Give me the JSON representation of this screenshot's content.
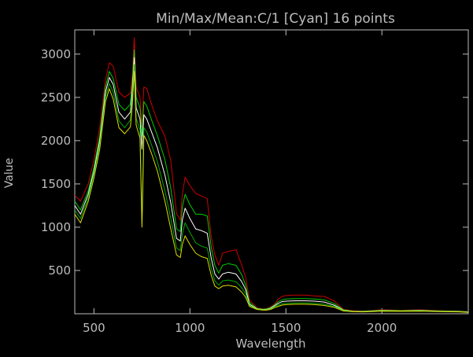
{
  "chart_data": {
    "type": "line",
    "title": "Min/Max/Mean:C/1 [Cyan] 16 points",
    "xlabel": "Wavelength",
    "ylabel": "Value",
    "xlim": [
      400,
      2450
    ],
    "ylim": [
      0,
      3280
    ],
    "x_ticks": [
      500,
      1000,
      1500,
      2000
    ],
    "y_ticks": [
      500,
      1000,
      1500,
      2000,
      2500,
      3000
    ],
    "grid": false,
    "colors": {
      "background": "#000000",
      "axis": "#bdbdbd",
      "max": "#cc0000",
      "max_mean": "#00cc00",
      "mean": "#ffffff",
      "min_mean": "#00aa00",
      "min": "#dddd00"
    },
    "series": [
      {
        "key": "max",
        "x": [
          400,
          430,
          470,
          500,
          530,
          560,
          580,
          600,
          630,
          660,
          690,
          700,
          710,
          720,
          740,
          750,
          760,
          775,
          800,
          830,
          870,
          900,
          930,
          950,
          960,
          975,
          1000,
          1030,
          1060,
          1090,
          1110,
          1130,
          1150,
          1170,
          1200,
          1240,
          1270,
          1290,
          1310,
          1350,
          1380,
          1400,
          1420,
          1440,
          1460,
          1480,
          1500,
          1550,
          1600,
          1650,
          1700,
          1750,
          1800,
          1850,
          1900,
          2000,
          2100,
          2200,
          2300,
          2400,
          2450
        ],
        "y": [
          1370,
          1300,
          1500,
          1780,
          2150,
          2700,
          2900,
          2860,
          2560,
          2500,
          2550,
          2750,
          3190,
          2620,
          2500,
          2150,
          2620,
          2600,
          2420,
          2230,
          2050,
          1770,
          1160,
          1080,
          1370,
          1580,
          1480,
          1390,
          1360,
          1330,
          900,
          680,
          560,
          700,
          720,
          740,
          560,
          420,
          160,
          65,
          55,
          60,
          80,
          110,
          170,
          200,
          210,
          215,
          215,
          205,
          200,
          150,
          50,
          35,
          30,
          45,
          40,
          45,
          35,
          30,
          25
        ]
      },
      {
        "key": "max_mean",
        "x": [
          400,
          430,
          470,
          500,
          530,
          560,
          580,
          600,
          630,
          660,
          690,
          700,
          710,
          720,
          740,
          750,
          760,
          775,
          800,
          830,
          870,
          900,
          930,
          950,
          960,
          975,
          1000,
          1030,
          1060,
          1090,
          1110,
          1130,
          1150,
          1170,
          1200,
          1240,
          1270,
          1290,
          1310,
          1350,
          1380,
          1400,
          1420,
          1440,
          1460,
          1480,
          1500,
          1550,
          1600,
          1650,
          1700,
          1750,
          1800,
          1850,
          1900,
          2000,
          2100,
          2200,
          2300,
          2400,
          2450
        ],
        "y": [
          1300,
          1200,
          1420,
          1690,
          2050,
          2620,
          2800,
          2720,
          2420,
          2350,
          2420,
          2680,
          3050,
          2500,
          2380,
          2050,
          2450,
          2400,
          2240,
          2060,
          1780,
          1450,
          980,
          950,
          1230,
          1380,
          1260,
          1150,
          1150,
          1130,
          780,
          560,
          470,
          560,
          580,
          560,
          450,
          330,
          130,
          60,
          52,
          55,
          70,
          100,
          140,
          160,
          170,
          175,
          175,
          170,
          160,
          120,
          45,
          30,
          28,
          40,
          36,
          40,
          32,
          28,
          22
        ]
      },
      {
        "key": "mean",
        "x": [
          400,
          430,
          470,
          500,
          530,
          560,
          580,
          600,
          630,
          660,
          690,
          700,
          710,
          720,
          740,
          750,
          760,
          775,
          800,
          830,
          870,
          900,
          930,
          950,
          960,
          975,
          1000,
          1030,
          1060,
          1090,
          1110,
          1130,
          1150,
          1170,
          1200,
          1240,
          1270,
          1290,
          1310,
          1350,
          1380,
          1400,
          1420,
          1440,
          1460,
          1480,
          1500,
          1550,
          1600,
          1650,
          1700,
          1750,
          1800,
          1850,
          1900,
          2000,
          2100,
          2200,
          2300,
          2400,
          2450
        ],
        "y": [
          1250,
          1150,
          1380,
          1650,
          2000,
          2560,
          2730,
          2650,
          2330,
          2250,
          2330,
          2600,
          2960,
          2380,
          2250,
          1900,
          2300,
          2250,
          2100,
          1920,
          1600,
          1280,
          870,
          840,
          1080,
          1220,
          1100,
          980,
          960,
          930,
          650,
          460,
          400,
          460,
          480,
          460,
          370,
          280,
          110,
          55,
          48,
          50,
          62,
          90,
          120,
          140,
          145,
          150,
          150,
          145,
          135,
          100,
          40,
          28,
          26,
          36,
          32,
          36,
          29,
          26,
          20
        ]
      },
      {
        "key": "min_mean",
        "x": [
          400,
          430,
          470,
          500,
          530,
          560,
          580,
          600,
          630,
          660,
          690,
          700,
          710,
          720,
          740,
          750,
          760,
          775,
          800,
          830,
          870,
          900,
          930,
          950,
          960,
          975,
          1000,
          1030,
          1060,
          1090,
          1110,
          1130,
          1150,
          1170,
          1200,
          1240,
          1270,
          1290,
          1310,
          1350,
          1380,
          1400,
          1420,
          1440,
          1460,
          1480,
          1500,
          1550,
          1600,
          1650,
          1700,
          1750,
          1800,
          1850,
          1900,
          2000,
          2100,
          2200,
          2300,
          2400,
          2450
        ],
        "y": [
          1200,
          1100,
          1340,
          1610,
          1950,
          2500,
          2660,
          2560,
          2230,
          2150,
          2240,
          2500,
          2880,
          2260,
          2120,
          1050,
          2150,
          2100,
          1950,
          1760,
          1420,
          1100,
          760,
          730,
          920,
          1050,
          940,
          820,
          780,
          760,
          530,
          380,
          330,
          380,
          390,
          370,
          300,
          230,
          95,
          52,
          45,
          46,
          55,
          80,
          100,
          115,
          120,
          125,
          125,
          120,
          110,
          85,
          36,
          26,
          24,
          33,
          30,
          33,
          27,
          24,
          18
        ]
      },
      {
        "key": "min",
        "x": [
          400,
          430,
          470,
          500,
          530,
          560,
          580,
          600,
          630,
          660,
          690,
          700,
          710,
          720,
          740,
          750,
          760,
          775,
          800,
          830,
          870,
          900,
          930,
          950,
          960,
          975,
          1000,
          1030,
          1060,
          1090,
          1110,
          1130,
          1150,
          1170,
          1200,
          1240,
          1270,
          1290,
          1310,
          1350,
          1380,
          1400,
          1420,
          1440,
          1460,
          1480,
          1500,
          1550,
          1600,
          1650,
          1700,
          1750,
          1800,
          1850,
          1900,
          2000,
          2100,
          2200,
          2300,
          2400,
          2450
        ],
        "y": [
          1150,
          1050,
          1300,
          1570,
          1900,
          2450,
          2600,
          2480,
          2150,
          2080,
          2160,
          2420,
          2800,
          2180,
          2030,
          1000,
          2060,
          2000,
          1850,
          1650,
          1300,
          980,
          680,
          650,
          800,
          900,
          800,
          700,
          660,
          640,
          450,
          320,
          290,
          320,
          330,
          310,
          250,
          190,
          85,
          50,
          42,
          42,
          50,
          70,
          85,
          100,
          105,
          110,
          110,
          105,
          95,
          75,
          32,
          24,
          22,
          30,
          28,
          30,
          25,
          22,
          16
        ]
      }
    ]
  }
}
